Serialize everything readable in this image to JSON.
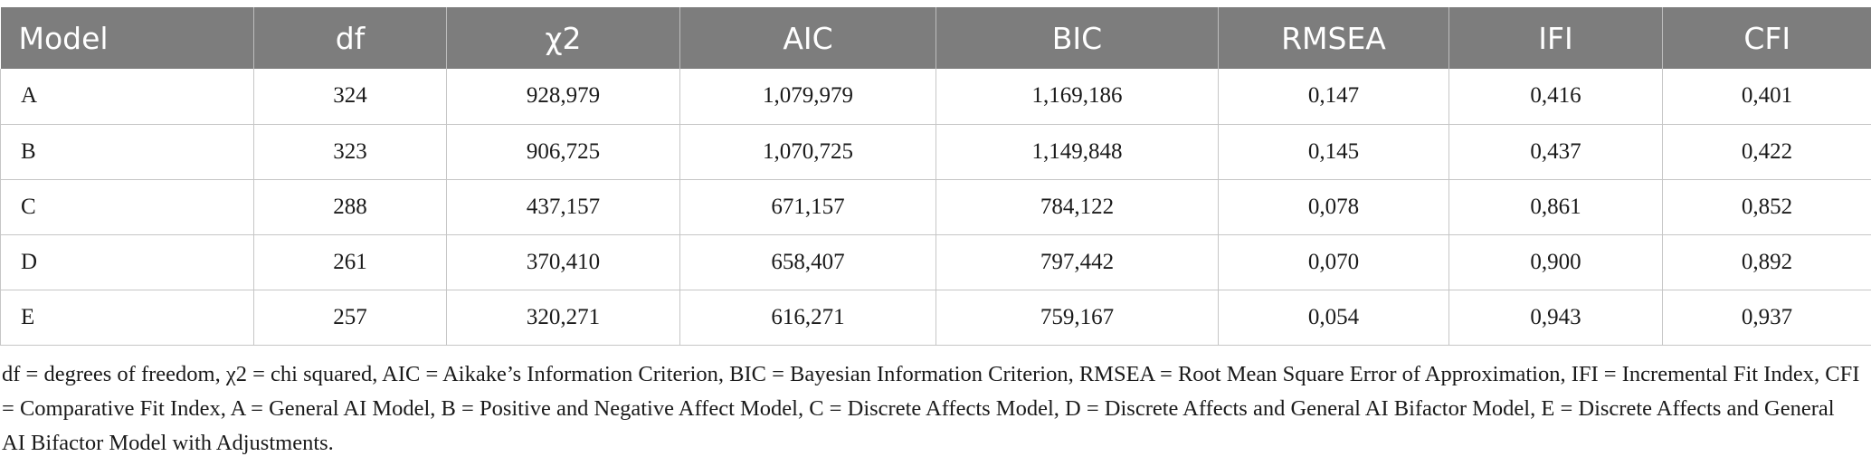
{
  "table": {
    "headers": [
      "Model",
      "df",
      "χ2",
      "AIC",
      "BIC",
      "RMSEA",
      "IFI",
      "CFI"
    ],
    "rows": [
      [
        "A",
        "324",
        "928,979",
        "1,079,979",
        "1,169,186",
        "0,147",
        "0,416",
        "0,401"
      ],
      [
        "B",
        "323",
        "906,725",
        "1,070,725",
        "1,149,848",
        "0,145",
        "0,437",
        "0,422"
      ],
      [
        "C",
        "288",
        "437,157",
        "671,157",
        "784,122",
        "0,078",
        "0,861",
        "0,852"
      ],
      [
        "D",
        "261",
        "370,410",
        "658,407",
        "797,442",
        "0,070",
        "0,900",
        "0,892"
      ],
      [
        "E",
        "257",
        "320,271",
        "616,271",
        "759,167",
        "0,054",
        "0,943",
        "0,937"
      ]
    ]
  },
  "footnote": "df = degrees of freedom, χ2 = chi squared, AIC = Aikake’s Information Criterion, BIC = Bayesian Information Criterion, RMSEA = Root Mean Square Error of Approximation, IFI = Incremental Fit Index, CFI = Comparative Fit Index, A = General AI Model, B = Positive and Negative Affect Model, C = Discrete Affects Model, D = Discrete Affects and General AI Bifactor Model, E = Discrete Affects and General AI Bifactor Model with Adjustments."
}
